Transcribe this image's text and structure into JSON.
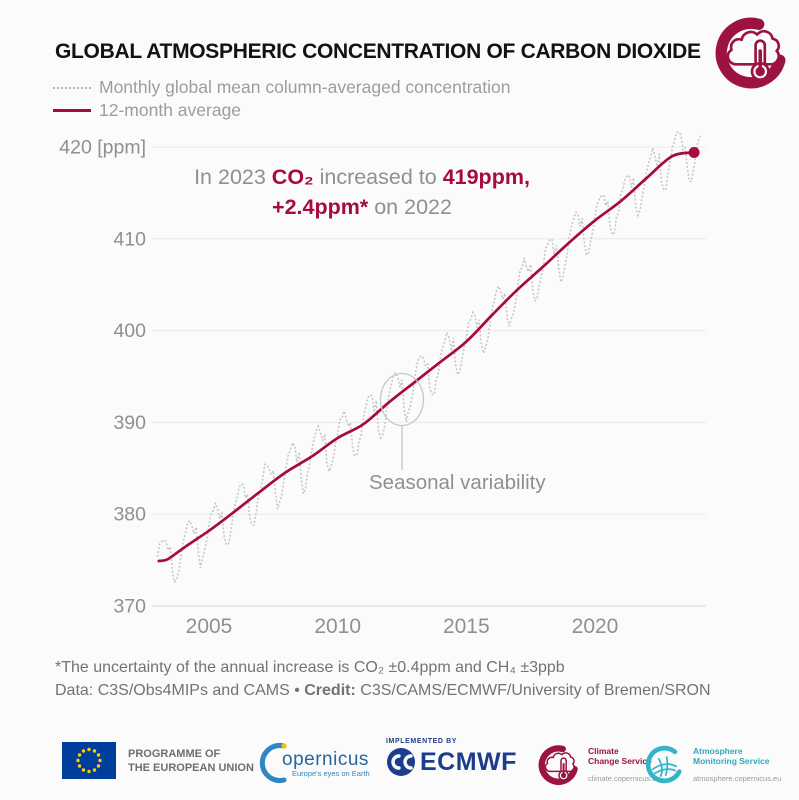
{
  "colors": {
    "accent_red": "#a60a3e",
    "logo_red": "#9c1340",
    "gray_text": "#8d9094",
    "gridline": "#e9e9eb",
    "axis_line": "#d8d8db",
    "dotted_series": "#c6c6cb",
    "eu_blue": "#003e9e",
    "eu_star_yellow": "#ffcc00",
    "ecmwf_blue": "#1d3c8c",
    "copernicus_blue": "#24679f",
    "ams_teal": "#35b4c9"
  },
  "header": {
    "title": "GLOBAL ATMOSPHERIC CONCENTRATION OF CARBON DIOXIDE"
  },
  "chart_data": {
    "type": "line",
    "title": "GLOBAL ATMOSPHERIC CONCENTRATION OF CARBON DIOXIDE",
    "unit": "ppm",
    "ylim": [
      370,
      422
    ],
    "xlim": [
      2002.8,
      2024.5
    ],
    "yticks": [
      370,
      380,
      390,
      400,
      410,
      420
    ],
    "ytick_unit_suffix": " [ppm]",
    "xticks": [
      2005,
      2010,
      2015,
      2020
    ],
    "grid": "horizontal",
    "legend_position": "top-left",
    "series": [
      {
        "name": "Monthly global mean column-averaged concentration",
        "style": "dotted",
        "color": "#c6c6cb",
        "derivation": "12-month average plus seasonal cycle",
        "seasonal_offsets_ppm": [
          0.5,
          1.5,
          2.2,
          2.5,
          1.9,
          0.6,
          1.1,
          -1.7,
          -3.2,
          -2.8,
          -1.8,
          -0.8
        ],
        "x_start": 2003.0,
        "x_end": 2024.08
      },
      {
        "name": "12-month average",
        "style": "solid",
        "color": "#a60a3e",
        "x": [
          2003.05,
          2003.4,
          2004,
          2005,
          2006,
          2007,
          2008,
          2009,
          2010,
          2011,
          2012,
          2013,
          2014,
          2015,
          2016,
          2017,
          2018,
          2019,
          2020,
          2021,
          2022,
          2023,
          2023.85
        ],
        "y": [
          374.9,
          375.1,
          376.3,
          378.2,
          380.3,
          382.5,
          384.6,
          386.3,
          388.3,
          389.8,
          392.2,
          394.4,
          396.6,
          398.8,
          401.7,
          404.5,
          407.0,
          409.6,
          412.0,
          414.1,
          416.6,
          419.0,
          419.4
        ]
      }
    ],
    "end_marker": {
      "x": 2023.85,
      "y": 419.4
    },
    "annotations": {
      "headline": {
        "prefix": "In 2023 ",
        "gas": "CO₂",
        "middle": " increased to ",
        "value": "419ppm,",
        "line2_bold": "+2.4ppm*",
        "line2_rest": " on 2022"
      },
      "seasonal": {
        "label": "Seasonal variability",
        "circle_x": 2012.5,
        "circle_y_ppm": 392.5
      }
    }
  },
  "footnotes": {
    "uncertainty": "*The uncertainty of the annual increase is CO₂ ±0.4ppm and CH₄ ±3ppb",
    "credits_pre": "Data: C3S/Obs4MIPs and CAMS • ",
    "credits_label": "Credit:",
    "credits_post": " C3S/CAMS/ECMWF/University of Bremen/SRON"
  },
  "footer_logos": {
    "eu": {
      "line1": "PROGRAMME OF",
      "line2": "THE EUROPEAN UNION"
    },
    "copernicus": {
      "wordmark_tail": "opernicus",
      "tagline": "Europe's eyes on Earth"
    },
    "ecmwf": {
      "implemented_by": "IMPLEMENTED BY",
      "name": "ECMWF"
    },
    "climate_service": {
      "line1": "Climate",
      "line2": "Change Service",
      "url": "climate.copernicus.eu"
    },
    "atmosphere_service": {
      "line1": "Atmosphere",
      "line2": "Monitoring Service",
      "url": "atmosphere.copernicus.eu"
    }
  }
}
